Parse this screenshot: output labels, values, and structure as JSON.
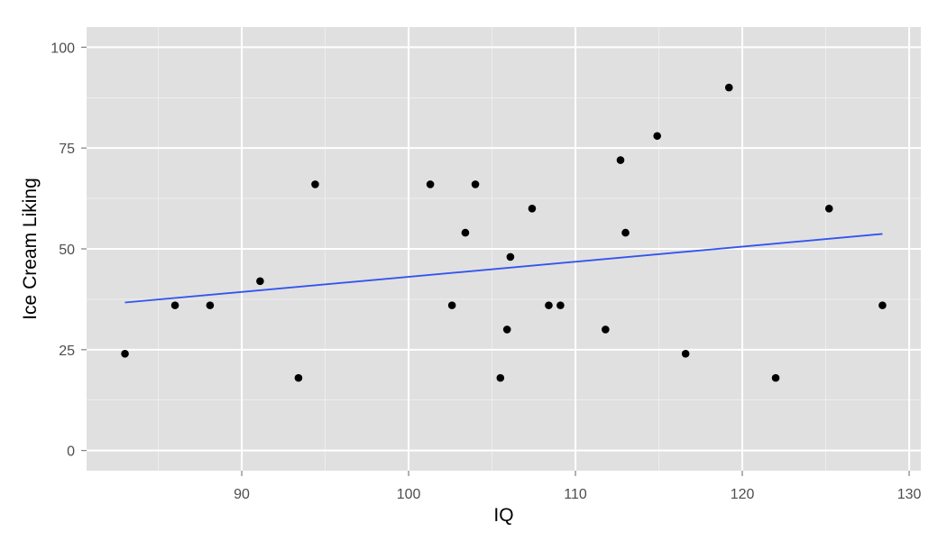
{
  "chart_data": {
    "type": "scatter",
    "title": "",
    "xlabel": "IQ",
    "ylabel": "Ice Cream Liking",
    "xlim": [
      80.7,
      130.7
    ],
    "ylim": [
      -5,
      105
    ],
    "x_ticks": [
      90,
      100,
      110,
      120,
      130
    ],
    "x_minor_ticks": [
      85,
      95,
      105,
      115,
      125
    ],
    "y_ticks": [
      0,
      25,
      50,
      75,
      100
    ],
    "y_minor_ticks": [
      12.5,
      37.5,
      62.5,
      87.5
    ],
    "grid": true,
    "colors": {
      "panel": "#e0e0e0",
      "grid": "#ffffff",
      "point": "#000000",
      "trend": "#3355ee"
    },
    "points": [
      {
        "x": 83.0,
        "y": 24
      },
      {
        "x": 86.0,
        "y": 36
      },
      {
        "x": 88.1,
        "y": 36
      },
      {
        "x": 91.1,
        "y": 42
      },
      {
        "x": 93.4,
        "y": 18
      },
      {
        "x": 94.4,
        "y": 66
      },
      {
        "x": 101.3,
        "y": 66
      },
      {
        "x": 102.6,
        "y": 36
      },
      {
        "x": 103.4,
        "y": 54
      },
      {
        "x": 104.0,
        "y": 66
      },
      {
        "x": 105.5,
        "y": 18
      },
      {
        "x": 105.9,
        "y": 30
      },
      {
        "x": 106.1,
        "y": 48
      },
      {
        "x": 107.4,
        "y": 60
      },
      {
        "x": 108.4,
        "y": 36
      },
      {
        "x": 109.1,
        "y": 36
      },
      {
        "x": 111.8,
        "y": 30
      },
      {
        "x": 112.7,
        "y": 72
      },
      {
        "x": 113.0,
        "y": 54
      },
      {
        "x": 114.9,
        "y": 78
      },
      {
        "x": 116.6,
        "y": 24
      },
      {
        "x": 119.2,
        "y": 90
      },
      {
        "x": 122.0,
        "y": 18
      },
      {
        "x": 125.2,
        "y": 60
      },
      {
        "x": 128.4,
        "y": 36
      }
    ],
    "trend_line": {
      "x": [
        83.0,
        128.4
      ],
      "y": [
        36.7,
        53.7
      ]
    }
  }
}
